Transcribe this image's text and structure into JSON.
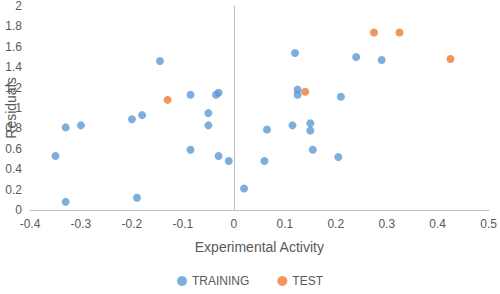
{
  "chart_data": {
    "type": "scatter",
    "x_label": "Experimental Activity",
    "y_label": "Residuals",
    "xlim": [
      -0.4,
      0.5
    ],
    "xticks": [
      -0.4,
      -0.3,
      -0.2,
      -0.1,
      0,
      0.1,
      0.2,
      0.3,
      0.4,
      0.5
    ],
    "ylim": [
      0,
      2
    ],
    "yticks": [
      0,
      0.2,
      0.4,
      0.6,
      0.8,
      1,
      1.2,
      1.4,
      1.6,
      1.8,
      2
    ],
    "grid": false,
    "legend": "bottom",
    "marker": "circle",
    "series": [
      {
        "name": "TRAINING",
        "color": "#5B9BD5",
        "x": [
          -0.35,
          -0.33,
          -0.33,
          -0.3,
          -0.2,
          -0.19,
          -0.18,
          -0.145,
          -0.085,
          -0.085,
          -0.05,
          -0.05,
          -0.035,
          -0.03,
          -0.03,
          -0.01,
          0.02,
          0.06,
          0.065,
          0.115,
          0.12,
          0.125,
          0.125,
          0.15,
          0.15,
          0.155,
          0.205,
          0.21,
          0.24,
          0.29
        ],
        "values": [
          0.53,
          0.08,
          0.81,
          0.83,
          0.89,
          0.12,
          0.93,
          1.46,
          0.59,
          1.13,
          0.95,
          0.83,
          1.13,
          1.15,
          0.53,
          0.48,
          0.21,
          0.48,
          0.79,
          0.83,
          1.54,
          1.18,
          1.13,
          0.85,
          0.78,
          0.59,
          0.52,
          1.11,
          1.5,
          1.47
        ]
      },
      {
        "name": "TEST",
        "color": "#ED7D31",
        "x": [
          -0.13,
          0.14,
          0.275,
          0.325,
          0.425
        ],
        "values": [
          1.08,
          1.16,
          1.74,
          1.74,
          1.48
        ]
      }
    ]
  }
}
